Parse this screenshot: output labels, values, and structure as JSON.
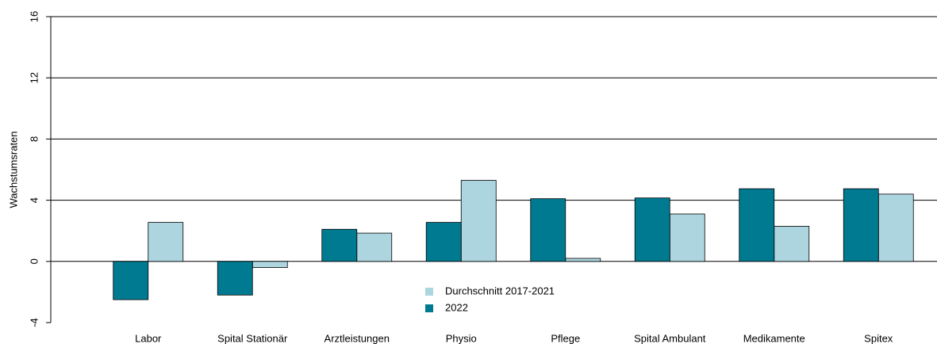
{
  "chart_data": {
    "type": "bar",
    "y_label": "Wachstumsraten",
    "categories": [
      "Labor",
      "Spital Stationär",
      "Arztleistungen",
      "Physio",
      "Pflege",
      "Spital Ambulant",
      "Medikamente",
      "Spitex"
    ],
    "series": [
      {
        "name": "Durchschnitt 2017-2021",
        "color": "#add5df",
        "values": [
          2.55,
          -0.4,
          1.85,
          5.3,
          0.2,
          3.1,
          2.3,
          4.4
        ]
      },
      {
        "name": "2022",
        "color": "#007a91",
        "values": [
          -2.5,
          -2.2,
          2.1,
          2.55,
          4.1,
          4.15,
          4.75,
          4.75
        ]
      }
    ],
    "ylim": [
      -4,
      16
    ],
    "yticks": [
      -4,
      0,
      4,
      8,
      12,
      16
    ],
    "grid": true
  }
}
